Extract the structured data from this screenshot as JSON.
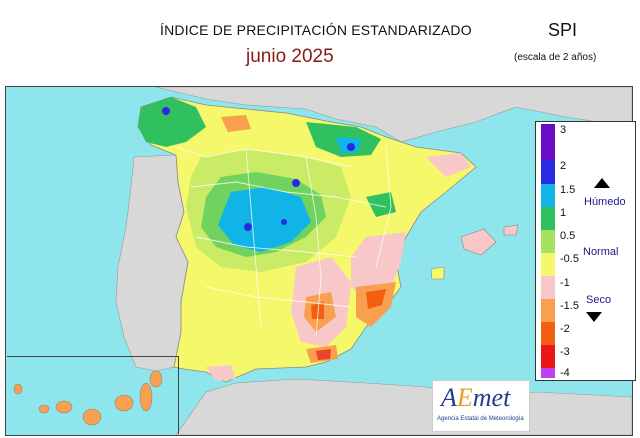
{
  "header": {
    "title": "ÍNDICE DE PRECIPITACIÓN ESTANDARIZADO",
    "subtitle": "junio  2025",
    "index_name": "SPI",
    "scale_note": "(escala de 2 años)"
  },
  "legend": {
    "ticks": [
      "3",
      "2",
      "1.5",
      "1",
      "0.5",
      "-0.5",
      "-1",
      "-1.5",
      "-2",
      "-3",
      "-4"
    ],
    "colors": [
      "#6a0dc8",
      "#2a2ae0",
      "#10b4e6",
      "#30c060",
      "#a8e060",
      "#f4f86a",
      "#f8c8c8",
      "#f8a050",
      "#f06010",
      "#e81818",
      "#c040f0"
    ],
    "humid_label": "Húmedo",
    "normal_label": "Normal",
    "dry_label": "Seco",
    "humid_icon": "triangle-up-icon",
    "dry_icon": "triangle-down-icon"
  },
  "map": {
    "sea_color": "#8fe5ec",
    "land_color": "#d8d8d8",
    "regions": [
      "Península Ibérica",
      "Islas Baleares",
      "Islas Canarias"
    ]
  },
  "logo": {
    "a": "A",
    "e": "E",
    "rest": "met",
    "subtitle": "Agencia Estatal de Meteorología"
  }
}
